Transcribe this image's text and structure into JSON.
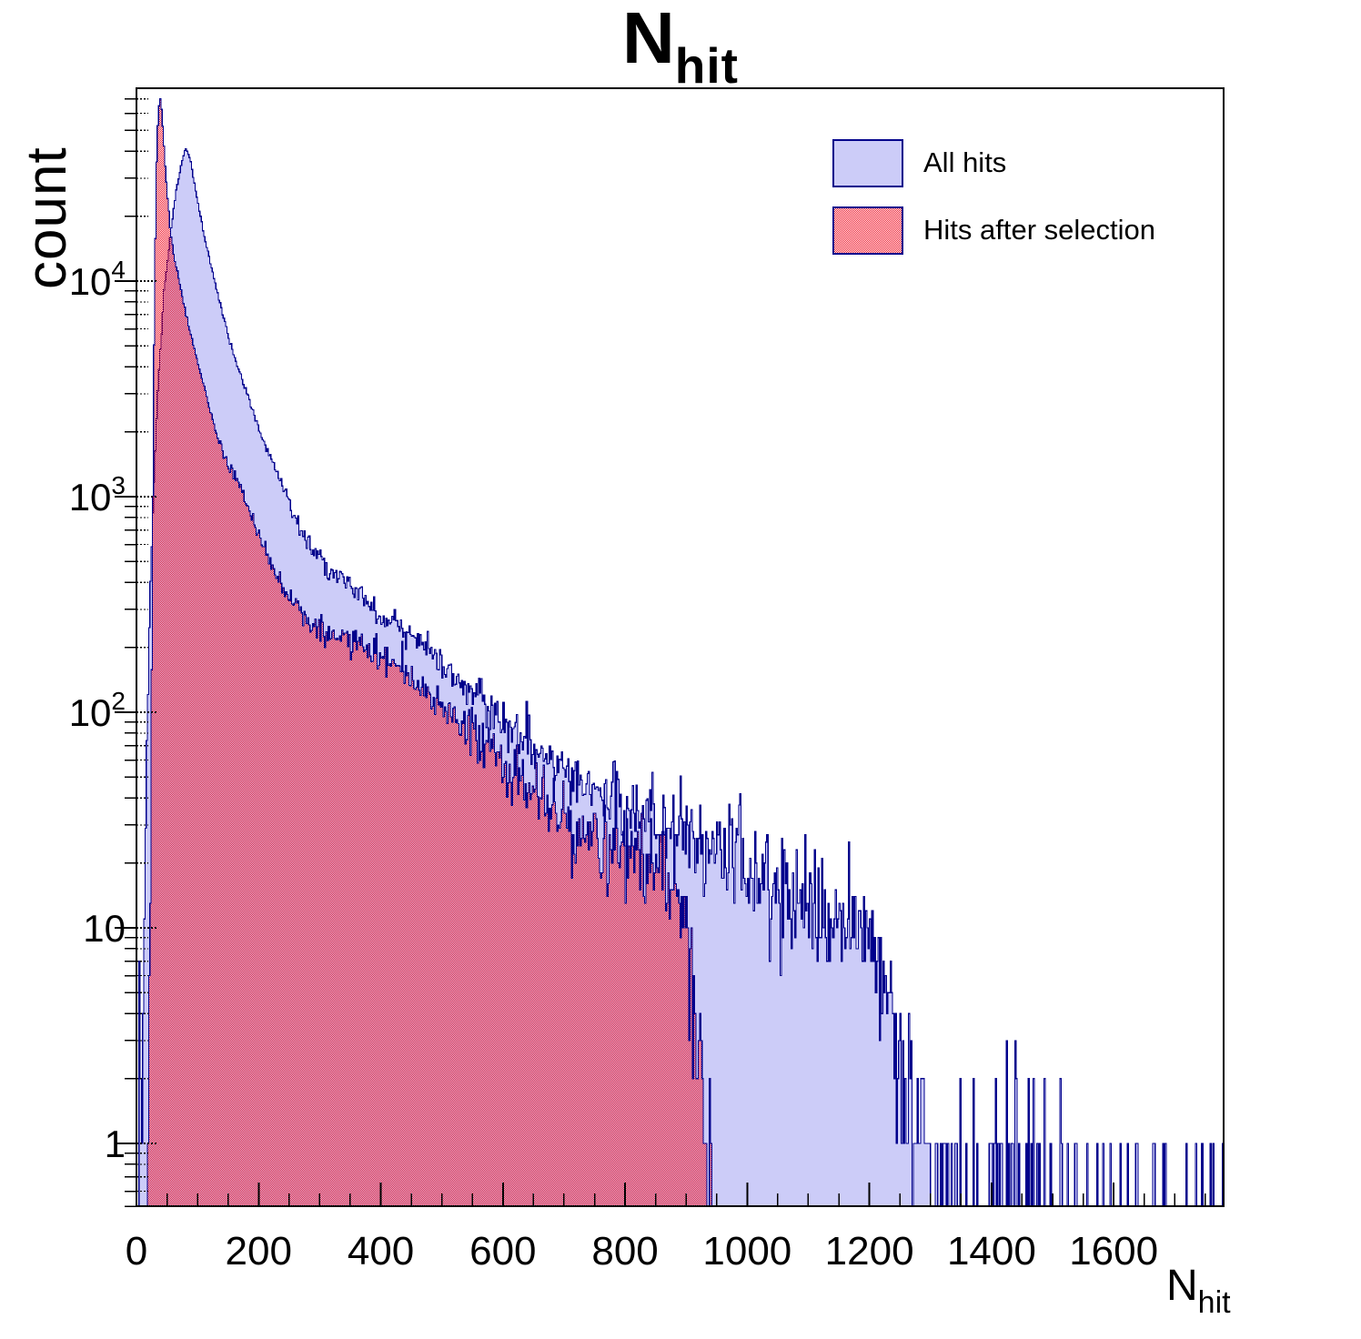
{
  "title": {
    "main": "N",
    "sub": "hit"
  },
  "y_axis": {
    "label": "count",
    "scale": "log",
    "tick_labels": [
      {
        "value": 1,
        "base": "1",
        "exp": ""
      },
      {
        "value": 10,
        "base": "10",
        "exp": ""
      },
      {
        "value": 100,
        "base": "10",
        "exp": "2"
      },
      {
        "value": 1000,
        "base": "10",
        "exp": "3"
      },
      {
        "value": 10000,
        "base": "10",
        "exp": "4"
      }
    ]
  },
  "x_axis": {
    "label_main": "N",
    "label_sub": "hit",
    "tick_labels": [
      "0",
      "200",
      "400",
      "600",
      "800",
      "1000",
      "1200",
      "1400",
      "1600"
    ],
    "major_step": 200,
    "minor_step": 50
  },
  "legend": {
    "items": [
      {
        "label": "All hits",
        "swatch": "blue-solid"
      },
      {
        "label": "Hits after selection",
        "swatch": "red-checker"
      }
    ]
  },
  "colors": {
    "blue_fill": "#ccccf8",
    "line": "#00008c",
    "red_checker": "#f01428",
    "axis": "#000000",
    "background": "#ffffff"
  },
  "chart_data": {
    "type": "histogram-overlay",
    "x_range": [
      0,
      1780
    ],
    "y_range": [
      0.5,
      78000
    ],
    "y_scale": "log",
    "bin_width": 2,
    "series": [
      {
        "name": "All hits",
        "style": "blue-solid",
        "peak": {
          "x": 80,
          "count": 42000
        },
        "spike": {
          "x": 4,
          "count": 7
        },
        "control_points_log10": [
          [
            6,
            -0.3
          ],
          [
            8,
            0
          ],
          [
            10,
            0.6
          ],
          [
            12,
            1
          ],
          [
            15,
            1.55
          ],
          [
            18,
            2
          ],
          [
            22,
            2.5
          ],
          [
            28,
            3
          ],
          [
            35,
            3.5
          ],
          [
            45,
            3.95
          ],
          [
            55,
            4.2
          ],
          [
            65,
            4.42
          ],
          [
            72,
            4.52
          ],
          [
            80,
            4.62
          ],
          [
            88,
            4.57
          ],
          [
            95,
            4.45
          ],
          [
            103,
            4.33
          ],
          [
            110,
            4.22
          ],
          [
            120,
            4.1
          ],
          [
            130,
            3.98
          ],
          [
            140,
            3.86
          ],
          [
            150,
            3.75
          ],
          [
            160,
            3.65
          ],
          [
            171,
            3.56
          ],
          [
            185,
            3.44
          ],
          [
            200,
            3.32
          ],
          [
            220,
            3.18
          ],
          [
            235,
            3.08
          ],
          [
            250,
            2.97
          ],
          [
            265,
            2.88
          ],
          [
            280,
            2.8
          ],
          [
            300,
            2.72
          ],
          [
            320,
            2.65
          ],
          [
            345,
            2.59
          ],
          [
            373,
            2.53
          ],
          [
            400,
            2.45
          ],
          [
            430,
            2.38
          ],
          [
            460,
            2.32
          ],
          [
            490,
            2.26
          ],
          [
            520,
            2.18
          ],
          [
            560,
            2.06
          ],
          [
            600,
            1.95
          ],
          [
            640,
            1.86
          ],
          [
            680,
            1.77
          ],
          [
            715,
            1.7
          ],
          [
            750,
            1.64
          ],
          [
            790,
            1.58
          ],
          [
            830,
            1.54
          ],
          [
            860,
            1.5
          ],
          [
            900,
            1.43
          ],
          [
            950,
            1.35
          ],
          [
            1000,
            1.28
          ],
          [
            1050,
            1.18
          ],
          [
            1090,
            1.1
          ],
          [
            1130,
            1.07
          ],
          [
            1170,
            1.02
          ],
          [
            1200,
            0.95
          ],
          [
            1220,
            0.85
          ],
          [
            1235,
            0.7
          ],
          [
            1250,
            0.45
          ],
          [
            1262,
            0.25
          ],
          [
            1270,
            0.05
          ]
        ],
        "tail": {
          "start": 1272,
          "zones": [
            {
              "until": 1292,
              "p": 0.8
            },
            {
              "until": 1350,
              "p": 0.5
            },
            {
              "until": 1420,
              "p": 0.28
            },
            {
              "until": 1490,
              "p": 0.3
            },
            {
              "until": 1560,
              "p": 0.15
            },
            {
              "until": 1780,
              "p": 0.1
            }
          ],
          "double_p": 0.08,
          "cluster": [
            1420,
            1480
          ],
          "cluster_double_p": 0.3,
          "cluster_triple_p": 0.15,
          "force_last_bin": 1778
        }
      },
      {
        "name": "Hits after selection",
        "style": "red-checker",
        "peak": {
          "x": 38,
          "count": 72000
        },
        "cutoff_x": 946,
        "control_points_log10": [
          [
            19,
            -0.5
          ],
          [
            21,
            0.3
          ],
          [
            23,
            1.2
          ],
          [
            25,
            2.2
          ],
          [
            27,
            3
          ],
          [
            29,
            3.7
          ],
          [
            31,
            4.2
          ],
          [
            33,
            4.55
          ],
          [
            35,
            4.72
          ],
          [
            38,
            4.86
          ],
          [
            40,
            4.83
          ],
          [
            43,
            4.72
          ],
          [
            46,
            4.58
          ],
          [
            50,
            4.42
          ],
          [
            55,
            4.25
          ],
          [
            62,
            4.1
          ],
          [
            70,
            4
          ],
          [
            80,
            3.86
          ],
          [
            90,
            3.74
          ],
          [
            100,
            3.63
          ],
          [
            115,
            3.46
          ],
          [
            130,
            3.3
          ],
          [
            145,
            3.18
          ],
          [
            160,
            3.1
          ],
          [
            171,
            3.04
          ],
          [
            190,
            2.9
          ],
          [
            210,
            2.76
          ],
          [
            230,
            2.64
          ],
          [
            255,
            2.52
          ],
          [
            280,
            2.43
          ],
          [
            310,
            2.37
          ],
          [
            340,
            2.34
          ],
          [
            373,
            2.32
          ],
          [
            400,
            2.26
          ],
          [
            430,
            2.2
          ],
          [
            460,
            2.13
          ],
          [
            490,
            2.05
          ],
          [
            530,
            1.95
          ],
          [
            570,
            1.85
          ],
          [
            610,
            1.72
          ],
          [
            650,
            1.62
          ],
          [
            690,
            1.54
          ],
          [
            715,
            1.49
          ],
          [
            750,
            1.44
          ],
          [
            790,
            1.38
          ],
          [
            830,
            1.33
          ],
          [
            860,
            1.3
          ],
          [
            880,
            1.27
          ],
          [
            900,
            0.95
          ],
          [
            915,
            0.55
          ],
          [
            928,
            0.2
          ],
          [
            940,
            -0.15
          ],
          [
            946,
            -0.8
          ]
        ]
      }
    ]
  }
}
